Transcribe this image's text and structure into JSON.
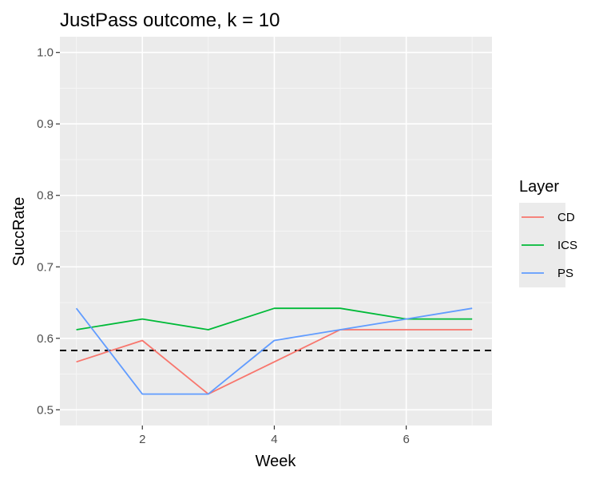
{
  "chart_data": {
    "type": "line",
    "title": "JustPass outcome, k = 10",
    "xlabel": "Week",
    "ylabel": "SuccRate",
    "x": [
      1,
      2,
      3,
      4,
      5,
      6,
      7
    ],
    "xlim": [
      0.75,
      7.3
    ],
    "ylim": [
      0.478,
      1.022
    ],
    "x_ticks": [
      2,
      4,
      6
    ],
    "x_tick_labels": [
      "2",
      "4",
      "6"
    ],
    "y_ticks": [
      0.5,
      0.6,
      0.7,
      0.8,
      0.9,
      1.0
    ],
    "y_tick_labels": [
      "0.5",
      "0.6",
      "0.7",
      "0.8",
      "0.9",
      "1.0"
    ],
    "reference_line": {
      "y": 0.583,
      "style": "dashed",
      "color": "#000000"
    },
    "legend": {
      "title": "Layer",
      "position": "right"
    },
    "grid": true,
    "series": [
      {
        "name": "CD",
        "color": "#F8766D",
        "values": [
          0.567,
          0.597,
          0.522,
          0.567,
          0.612,
          0.612,
          0.612
        ]
      },
      {
        "name": "ICS",
        "color": "#00BA38",
        "values": [
          0.612,
          0.627,
          0.612,
          0.642,
          0.642,
          0.627,
          0.627
        ]
      },
      {
        "name": "PS",
        "color": "#619CFF",
        "values": [
          0.642,
          0.522,
          0.522,
          0.597,
          0.612,
          0.627,
          0.642
        ]
      }
    ]
  }
}
